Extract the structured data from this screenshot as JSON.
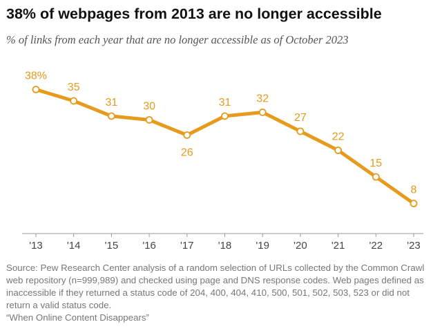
{
  "header": {
    "title": "38% of webpages from 2013 are no longer accessible",
    "subtitle": "% of links from each year that are no longer accessible as of October 2023"
  },
  "chart_data": {
    "type": "line",
    "title": "38% of webpages from 2013 are no longer accessible",
    "subtitle": "% of links from each year that are no longer accessible as of October 2023",
    "categories": [
      "'13",
      "'14",
      "'15",
      "'16",
      "'17",
      "'18",
      "'19",
      "'20",
      "'21",
      "'22",
      "'23"
    ],
    "series": [
      {
        "name": "Percent of links no longer accessible",
        "values": [
          38,
          35,
          31,
          30,
          26,
          31,
          32,
          27,
          22,
          15,
          8
        ]
      }
    ],
    "data_labels": [
      "38%",
      "35",
      "31",
      "30",
      "26",
      "31",
      "32",
      "27",
      "22",
      "15",
      "8"
    ],
    "label_positions": [
      "above",
      "above",
      "above",
      "above",
      "below",
      "above",
      "above",
      "above",
      "above",
      "above",
      "above"
    ],
    "xlabel": "",
    "ylabel": "",
    "ylim": [
      0,
      40
    ],
    "grid": false,
    "line_color": "#E69A1E"
  },
  "footer": {
    "source": "Source: Pew Research Center analysis of a random selection of URLs collected by the Common Crawl web repository (n=999,989) and checked using page and DNS response codes. Web pages defined as inaccessible if they returned a status code of 204, 400, 404, 410, 500, 501, 502, 503, 523 or did not return a valid status code.",
    "report": "“When Online Content Disappears”"
  }
}
